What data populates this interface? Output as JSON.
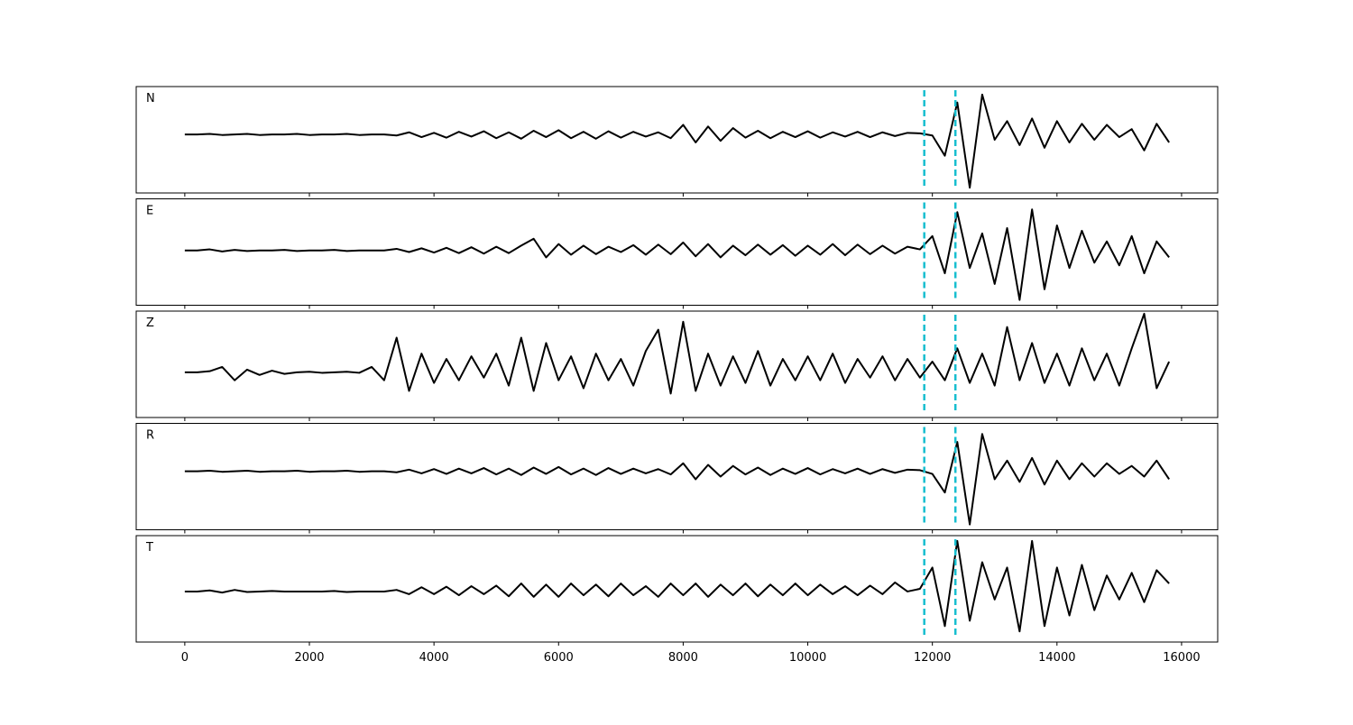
{
  "chart_data": {
    "type": "line",
    "x": [
      0,
      200,
      400,
      600,
      800,
      1000,
      1200,
      1400,
      1600,
      1800,
      2000,
      2200,
      2400,
      2600,
      2800,
      3000,
      3200,
      3400,
      3600,
      3800,
      4000,
      4200,
      4400,
      4600,
      4800,
      5000,
      5200,
      5400,
      5600,
      5800,
      6000,
      6200,
      6400,
      6600,
      6800,
      7000,
      7200,
      7400,
      7600,
      7800,
      8000,
      8200,
      8400,
      8600,
      8800,
      9000,
      9200,
      9400,
      9600,
      9800,
      10000,
      10200,
      10400,
      10600,
      10800,
      11000,
      11200,
      11400,
      11600,
      11800,
      12000,
      12200,
      12400,
      12600,
      12800,
      13000,
      13200,
      13400,
      13600,
      13800,
      14000,
      14200,
      14400,
      14600,
      14800,
      15000,
      15200,
      15400,
      15600,
      15800
    ],
    "series": [
      {
        "name": "N",
        "color": "#000000",
        "values": [
          0.1,
          0.1,
          0.11,
          0.09,
          0.1,
          0.11,
          0.09,
          0.1,
          0.1,
          0.11,
          0.09,
          0.1,
          0.1,
          0.11,
          0.09,
          0.1,
          0.1,
          0.08,
          0.14,
          0.05,
          0.13,
          0.04,
          0.15,
          0.06,
          0.16,
          0.03,
          0.14,
          0.02,
          0.17,
          0.05,
          0.18,
          0.03,
          0.15,
          0.02,
          0.16,
          0.04,
          0.15,
          0.06,
          0.14,
          0.03,
          0.28,
          -0.05,
          0.25,
          -0.02,
          0.22,
          0.04,
          0.17,
          0.03,
          0.15,
          0.05,
          0.16,
          0.04,
          0.14,
          0.06,
          0.15,
          0.05,
          0.14,
          0.07,
          0.13,
          0.12,
          0.08,
          -0.3,
          0.7,
          -0.9,
          0.85,
          0.0,
          0.35,
          -0.1,
          0.4,
          -0.15,
          0.35,
          -0.05,
          0.3,
          0.0,
          0.28,
          0.05,
          0.2,
          -0.2,
          0.3,
          -0.05
        ]
      },
      {
        "name": "E",
        "color": "#000000",
        "values": [
          0.03,
          0.03,
          0.05,
          0.01,
          0.04,
          0.02,
          0.03,
          0.03,
          0.04,
          0.02,
          0.03,
          0.03,
          0.04,
          0.02,
          0.03,
          0.03,
          0.03,
          0.06,
          0.0,
          0.07,
          -0.01,
          0.08,
          -0.02,
          0.09,
          -0.03,
          0.1,
          -0.02,
          0.12,
          0.25,
          -0.1,
          0.15,
          -0.05,
          0.12,
          -0.04,
          0.1,
          0.0,
          0.13,
          -0.05,
          0.14,
          -0.04,
          0.18,
          -0.08,
          0.15,
          -0.1,
          0.12,
          -0.06,
          0.14,
          -0.05,
          0.13,
          -0.07,
          0.12,
          -0.05,
          0.15,
          -0.06,
          0.14,
          -0.04,
          0.12,
          -0.03,
          0.1,
          0.05,
          0.3,
          -0.4,
          0.75,
          -0.3,
          0.35,
          -0.6,
          0.45,
          -0.9,
          0.8,
          -0.7,
          0.5,
          -0.3,
          0.4,
          -0.2,
          0.2,
          -0.25,
          0.3,
          -0.4,
          0.2,
          -0.1
        ]
      },
      {
        "name": "Z",
        "color": "#000000",
        "values": [
          -0.15,
          -0.15,
          -0.13,
          -0.05,
          -0.3,
          -0.1,
          -0.2,
          -0.12,
          -0.18,
          -0.15,
          -0.14,
          -0.16,
          -0.15,
          -0.14,
          -0.16,
          -0.05,
          -0.3,
          0.5,
          -0.5,
          0.2,
          -0.35,
          0.1,
          -0.3,
          0.15,
          -0.25,
          0.2,
          -0.4,
          0.5,
          -0.5,
          0.4,
          -0.3,
          0.15,
          -0.45,
          0.2,
          -0.3,
          0.1,
          -0.4,
          0.25,
          0.65,
          -0.55,
          0.8,
          -0.5,
          0.2,
          -0.4,
          0.15,
          -0.35,
          0.25,
          -0.4,
          0.1,
          -0.3,
          0.15,
          -0.3,
          0.2,
          -0.35,
          0.1,
          -0.25,
          0.15,
          -0.3,
          0.1,
          -0.25,
          0.05,
          -0.3,
          0.3,
          -0.35,
          0.2,
          -0.4,
          0.7,
          -0.3,
          0.4,
          -0.35,
          0.2,
          -0.4,
          0.3,
          -0.3,
          0.2,
          -0.4,
          0.3,
          0.95,
          -0.45,
          0.05
        ]
      },
      {
        "name": "R",
        "color": "#000000",
        "values": [
          0.1,
          0.1,
          0.11,
          0.09,
          0.1,
          0.11,
          0.09,
          0.1,
          0.1,
          0.11,
          0.09,
          0.1,
          0.1,
          0.11,
          0.09,
          0.1,
          0.1,
          0.08,
          0.13,
          0.06,
          0.14,
          0.05,
          0.15,
          0.06,
          0.16,
          0.04,
          0.15,
          0.03,
          0.17,
          0.05,
          0.18,
          0.04,
          0.15,
          0.03,
          0.16,
          0.05,
          0.15,
          0.06,
          0.14,
          0.04,
          0.25,
          -0.05,
          0.22,
          0.0,
          0.2,
          0.04,
          0.17,
          0.03,
          0.15,
          0.05,
          0.16,
          0.04,
          0.14,
          0.06,
          0.15,
          0.05,
          0.14,
          0.07,
          0.13,
          0.12,
          0.05,
          -0.3,
          0.65,
          -0.9,
          0.8,
          -0.05,
          0.3,
          -0.1,
          0.35,
          -0.15,
          0.3,
          -0.05,
          0.25,
          0.0,
          0.25,
          0.05,
          0.2,
          0.0,
          0.3,
          -0.05
        ]
      },
      {
        "name": "T",
        "color": "#000000",
        "values": [
          -0.05,
          -0.05,
          -0.03,
          -0.07,
          -0.02,
          -0.06,
          -0.05,
          -0.04,
          -0.05,
          -0.05,
          -0.05,
          -0.05,
          -0.04,
          -0.06,
          -0.05,
          -0.05,
          -0.05,
          -0.02,
          -0.1,
          0.03,
          -0.1,
          0.04,
          -0.12,
          0.05,
          -0.1,
          0.06,
          -0.14,
          0.1,
          -0.15,
          0.08,
          -0.15,
          0.1,
          -0.12,
          0.08,
          -0.14,
          0.1,
          -0.12,
          0.05,
          -0.15,
          0.1,
          -0.12,
          0.1,
          -0.15,
          0.08,
          -0.12,
          0.1,
          -0.14,
          0.08,
          -0.12,
          0.1,
          -0.12,
          0.08,
          -0.1,
          0.05,
          -0.12,
          0.06,
          -0.1,
          0.12,
          -0.05,
          0.0,
          0.4,
          -0.7,
          0.9,
          -0.6,
          0.5,
          -0.2,
          0.4,
          -0.8,
          0.9,
          -0.7,
          0.4,
          -0.5,
          0.45,
          -0.4,
          0.25,
          -0.2,
          0.3,
          -0.25,
          0.35,
          0.1
        ]
      }
    ],
    "xlim": [
      -780,
      16580
    ],
    "xticks": [
      0,
      2000,
      4000,
      6000,
      8000,
      10000,
      12000,
      14000,
      16000
    ],
    "ylim": [
      -1,
      1
    ],
    "markers": {
      "values": [
        11870,
        12370
      ],
      "color": "#17becf"
    }
  }
}
